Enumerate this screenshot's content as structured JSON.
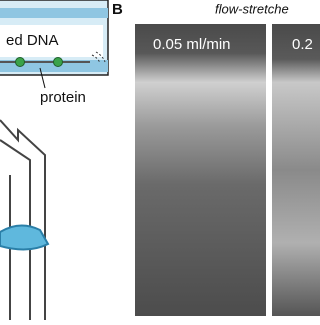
{
  "panel_a": {
    "labels": [
      "ed DNA",
      "protein"
    ]
  },
  "panel_b": {
    "letter": "B",
    "title": "flow-stretche",
    "panels": [
      "0.05 ml/min",
      "0.2"
    ]
  }
}
